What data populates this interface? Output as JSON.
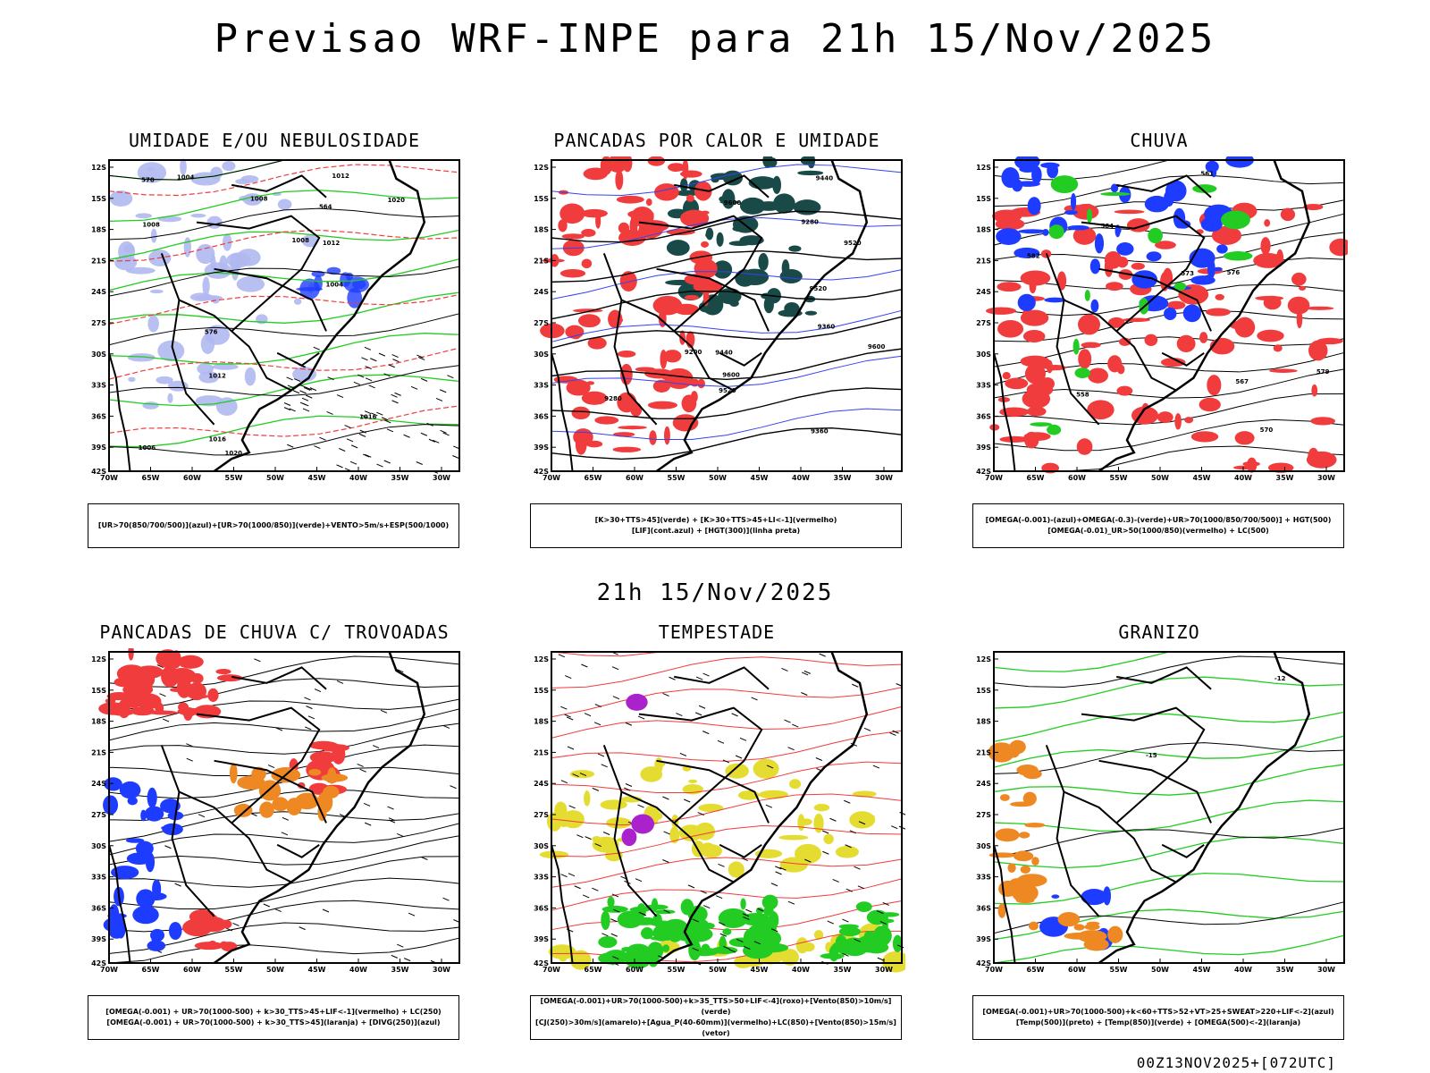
{
  "title": "Previsao WRF-INPE  para 21h 15/Nov/2025",
  "subtitle": "21h 15/Nov/2025",
  "footer": "00Z13NOV2025+[072UTC]",
  "lat_labels": [
    "12S",
    "15S",
    "18S",
    "21S",
    "24S",
    "27S",
    "30S",
    "33S",
    "36S",
    "39S",
    "42S"
  ],
  "lon_labels": [
    "70W",
    "65W",
    "60W",
    "55W",
    "50W",
    "45W",
    "40W",
    "35W",
    "30W"
  ],
  "colors": {
    "lightblue": "#b0b8f0",
    "blue": "#1e3cff",
    "green": "#22cc22",
    "red": "#f03c3c",
    "darkgreen": "#1a4a48",
    "orange": "#ee8822",
    "yellow": "#e4dc30",
    "purple": "#aa22cc"
  },
  "panels": [
    {
      "title": "UMIDADE E/OU NEBULOSIDADE",
      "legend": [
        "[UR>70(850/700/500)](azul)+[UR>70(1000/850)](verde)+VENTO>5m/s+ESP(500/1000)"
      ],
      "labels": [
        "1008",
        "1008",
        "1006",
        "1012",
        "1016",
        "1012",
        "1004",
        "1020",
        "1004",
        "1016",
        "1012",
        "1008",
        "1020",
        "570",
        "576",
        "564"
      ]
    },
    {
      "title": "PANCADAS POR CALOR E UMIDADE",
      "legend": [
        "[K>30+TTS>45](verde) + [K>30+TTS>45+LI<-1](vermelho)",
        "[LIF](cont.azul) + [HGT(300)](linha preta)"
      ],
      "labels": [
        "9600",
        "9520",
        "9600",
        "9600",
        "9440",
        "9520",
        "9360",
        "9520",
        "9440",
        "9360",
        "9280",
        "9200",
        "9280"
      ]
    },
    {
      "title": "CHUVA",
      "legend": [
        "[OMEGA(-0.001)-(azul)+OMEGA(-0.3)-(verde)+UR>70(1000/850/700/500)] + HGT(500)",
        "[OMEGA(-0.01)_UR>50(1000/850)(vermelho) + LC(500)"
      ],
      "labels": [
        "582",
        "579",
        "576",
        "573",
        "570",
        "567",
        "564",
        "561",
        "558"
      ]
    },
    {
      "title": "PANCADAS DE CHUVA C/ TROVOADAS",
      "legend": [
        "[OMEGA(-0.001) + UR>70(1000-500) + k>30_TTS>45+LIF<-1](vermelho) + LC(250)",
        "[OMEGA(-0.001) + UR>70(1000-500) + k>30_TTS>45](laranja) + [DIVG(250)](azul)"
      ],
      "labels": []
    },
    {
      "title": "TEMPESTADE",
      "legend": [
        "[OMEGA(-0.001)+UR>70(1000-500)+k>35_TTS>50+LIF<-4](roxo)+[Vento(850)>10m/s](verde)",
        "[CJ(250)>30m/s](amarelo)+[Agua_P(40-60mm)](vermelho)+LC(850)+[Vento(850)>15m/s](vetor)"
      ],
      "labels": []
    },
    {
      "title": "GRANIZO",
      "legend": [
        "[OMEGA(-0.001)+UR>70(1000-500)+k<60+TTS>52+VT>25+SWEAT>220+LIF<-2](azul)",
        "[Temp(500)](preto) + [Temp(850)](verde) + [OMEGA(500)<-2](laranja)"
      ],
      "labels": [
        "-15",
        "-12"
      ]
    }
  ]
}
